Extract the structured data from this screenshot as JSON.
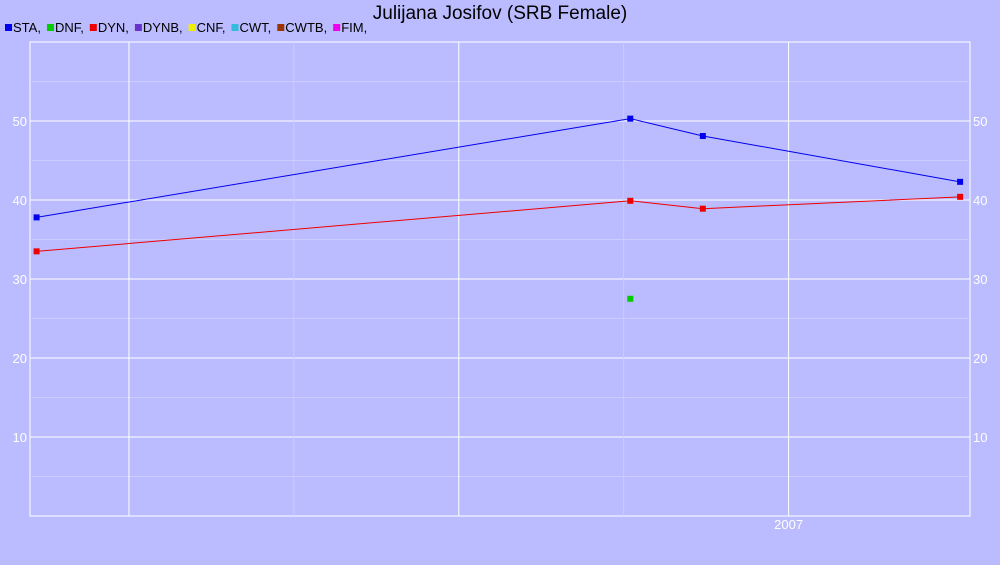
{
  "chart_data": {
    "type": "line",
    "title": "Julijana Josifov (SRB Female)",
    "xlabel": "",
    "ylabel": "",
    "legend": [
      {
        "label": "STA,",
        "color": "#0000ee"
      },
      {
        "label": "DNF,",
        "color": "#00cc00"
      },
      {
        "label": "DYN,",
        "color": "#ee0000"
      },
      {
        "label": "DYNB,",
        "color": "#6633cc"
      },
      {
        "label": "CNF,",
        "color": "#eeee00"
      },
      {
        "label": "CWT,",
        "color": "#33bbdd"
      },
      {
        "label": "CWTB,",
        "color": "#993300"
      },
      {
        "label": "FIM,",
        "color": "#ee00ee"
      }
    ],
    "legend_position": "top-left",
    "grid": true,
    "x_tick_labels": [
      "2007"
    ],
    "y_ticks": [
      10,
      20,
      30,
      40,
      50
    ],
    "ylim": [
      0,
      60
    ],
    "xlim": [
      2004.7,
      2007.55
    ],
    "series": [
      {
        "name": "STA",
        "color": "#0000ee",
        "line": true,
        "points": [
          [
            2004.72,
            37.8
          ],
          [
            2006.52,
            50.3
          ],
          [
            2006.74,
            48.1
          ],
          [
            2007.52,
            42.3
          ]
        ]
      },
      {
        "name": "DNF",
        "color": "#00cc00",
        "line": false,
        "points": [
          [
            2006.52,
            27.5
          ]
        ]
      },
      {
        "name": "DYN",
        "color": "#ee0000",
        "line": true,
        "points": [
          [
            2004.72,
            33.5
          ],
          [
            2006.52,
            39.9
          ],
          [
            2006.74,
            38.9
          ],
          [
            2007.52,
            40.4
          ]
        ]
      }
    ]
  }
}
